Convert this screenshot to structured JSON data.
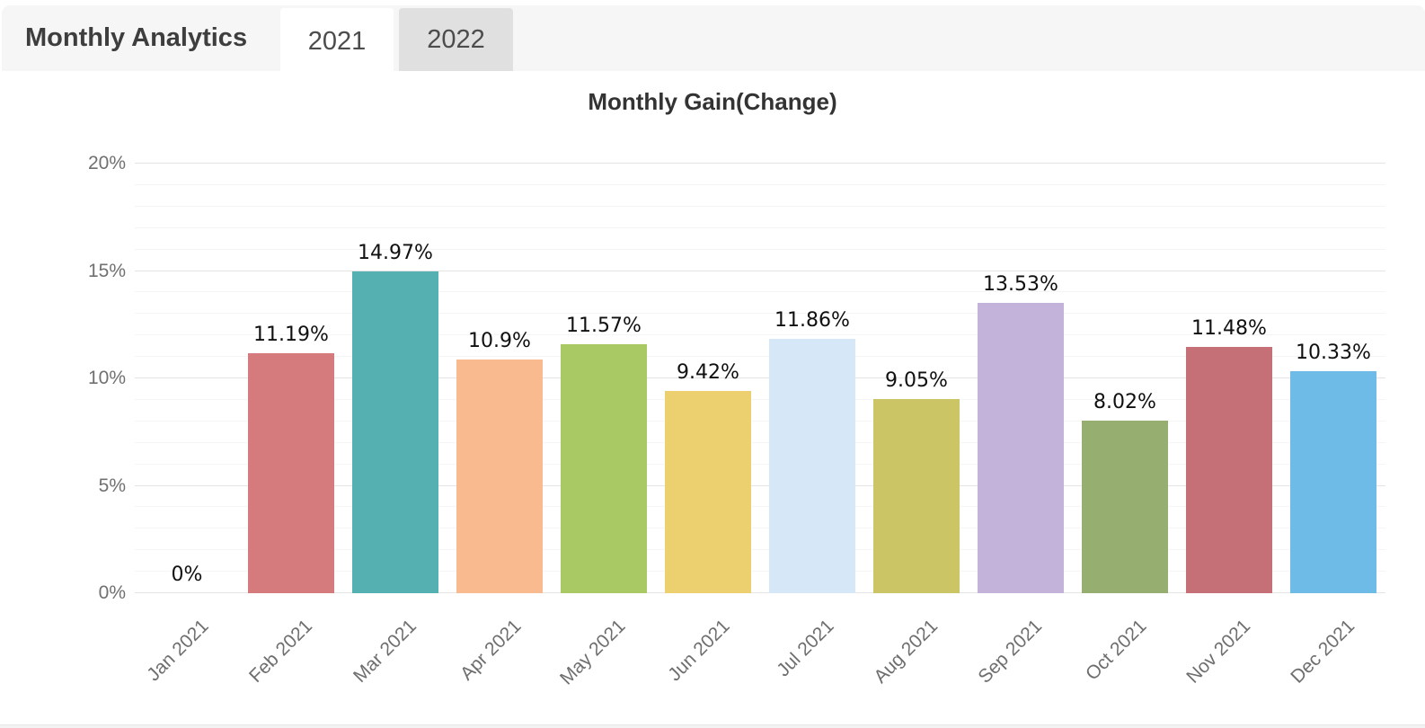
{
  "header": {
    "title": "Monthly Analytics",
    "tabs": [
      {
        "label": "2021",
        "active": true
      },
      {
        "label": "2022",
        "active": false
      }
    ]
  },
  "chart_data": {
    "type": "bar",
    "title": "Monthly Gain(Change)",
    "categories": [
      "Jan 2021",
      "Feb 2021",
      "Mar 2021",
      "Apr 2021",
      "May 2021",
      "Jun 2021",
      "Jul 2021",
      "Aug 2021",
      "Sep 2021",
      "Oct 2021",
      "Nov 2021",
      "Dec 2021"
    ],
    "values": [
      0,
      11.19,
      14.97,
      10.9,
      11.57,
      9.42,
      11.86,
      9.05,
      13.53,
      8.02,
      11.48,
      10.33
    ],
    "value_labels": [
      "0%",
      "11.19%",
      "14.97%",
      "10.9%",
      "11.57%",
      "9.42%",
      "11.86%",
      "9.05%",
      "13.53%",
      "8.02%",
      "11.48%",
      "10.33%"
    ],
    "bar_colors": [
      "",
      "#d57b7e",
      "#55b1b1",
      "#f9ba8f",
      "#a9c964",
      "#eccf6e",
      "#d6e7f7",
      "#ccc566",
      "#c3b3da",
      "#96ae70",
      "#c57076",
      "#6fbbe8"
    ],
    "xlabel": "",
    "ylabel": "",
    "ylim": [
      0,
      20
    ],
    "ytick_step": 5,
    "minor_grid_step": 1,
    "yticks": [
      "0%",
      "5%",
      "10%",
      "15%",
      "20%"
    ],
    "grid": "on",
    "legend": "none",
    "xlabel_rotation": -45,
    "value_label_color": "#101010",
    "axis_label_color": "#6e6e6e"
  }
}
